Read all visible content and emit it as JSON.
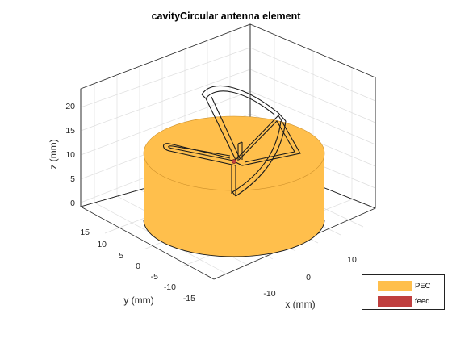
{
  "figure": {
    "title": "cavityCircular antenna element"
  },
  "axes": {
    "xlabel": "x (mm)",
    "ylabel": "y (mm)",
    "zlabel": "z (mm)",
    "x_ticks": [
      "-10",
      "0",
      "10"
    ],
    "y_ticks": [
      "15",
      "10",
      "5",
      "0",
      "-5",
      "-10",
      "-15"
    ],
    "z_ticks": [
      "20",
      "15",
      "10",
      "5",
      "0"
    ],
    "grid": "on"
  },
  "legend": {
    "items": [
      {
        "label": "PEC",
        "color": "#FFBF4C"
      },
      {
        "label": "feed",
        "color": "#BF3F3F"
      }
    ]
  },
  "colors": {
    "pec": "#FFBF4C",
    "feed": "#BF3F3F",
    "edge": "#1a1a1a",
    "grid": "#dedede"
  }
}
